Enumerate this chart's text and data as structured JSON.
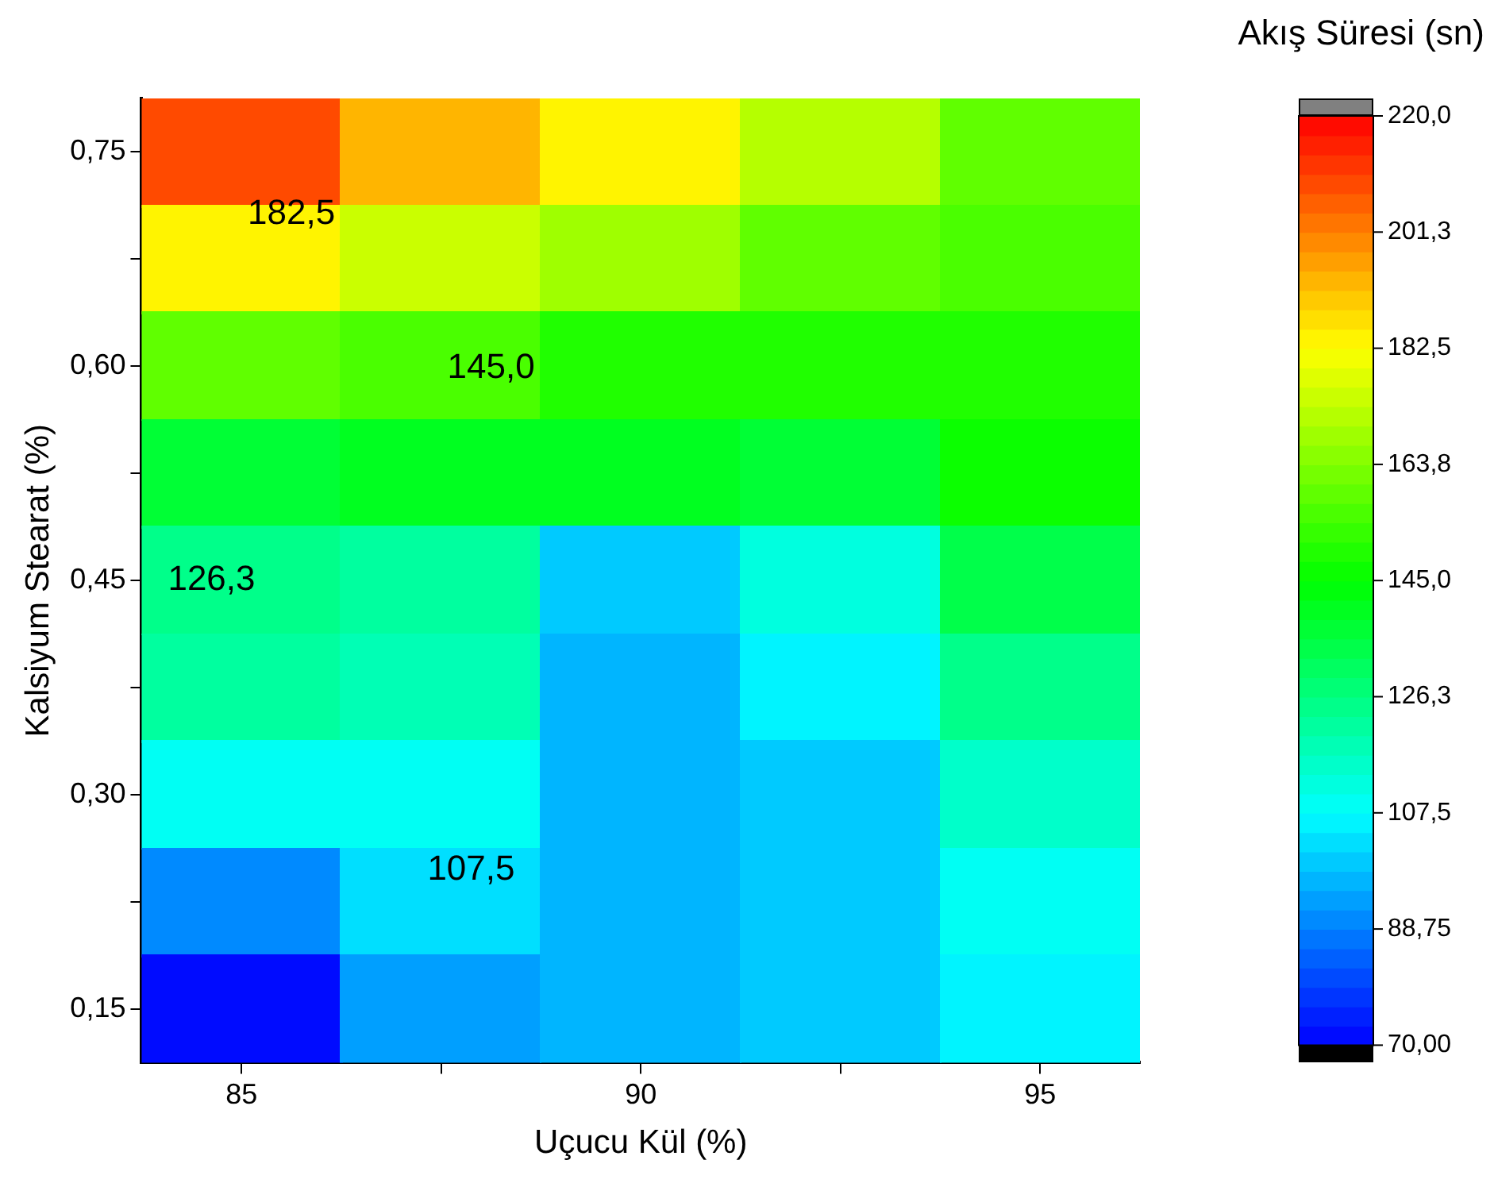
{
  "chart_data": {
    "type": "heatmap",
    "xlabel": "Uçucu Kül (%)",
    "ylabel": "Kalsiyum Stearat (%)",
    "clabel": "Akış Süresi (sn)",
    "categories": [
      "85",
      null,
      "90",
      null,
      "95"
    ],
    "y_categories": [
      "0,75",
      null,
      "0,60",
      null,
      "0,45",
      null,
      "0,30",
      null,
      "0,15"
    ],
    "cells": [
      [
        210,
        192,
        183,
        170,
        158
      ],
      [
        185,
        175,
        168,
        158,
        155
      ],
      [
        160,
        155,
        150,
        150,
        150
      ],
      [
        138,
        140,
        140,
        138,
        145
      ],
      [
        125,
        122,
        100,
        112,
        135
      ],
      [
        120,
        118,
        96,
        105,
        125
      ],
      [
        108,
        108,
        96,
        100,
        115
      ],
      [
        90,
        104,
        96,
        100,
        108
      ],
      [
        72,
        92,
        96,
        101,
        105
      ]
    ],
    "clim": [
      70,
      220
    ],
    "cticks": [
      {
        "value": 70,
        "label": "70,00"
      },
      {
        "value": 88.75,
        "label": "88,75"
      },
      {
        "value": 107.5,
        "label": "107,5"
      },
      {
        "value": 126.25,
        "label": "126,3"
      },
      {
        "value": 145,
        "label": "145,0"
      },
      {
        "value": 163.75,
        "label": "163,8"
      },
      {
        "value": 182.5,
        "label": "182,5"
      },
      {
        "value": 201.25,
        "label": "201,3"
      },
      {
        "value": 220,
        "label": "220,0"
      }
    ],
    "annotations": [
      "182,5",
      "145,0",
      "126,3",
      "107,5"
    ]
  }
}
